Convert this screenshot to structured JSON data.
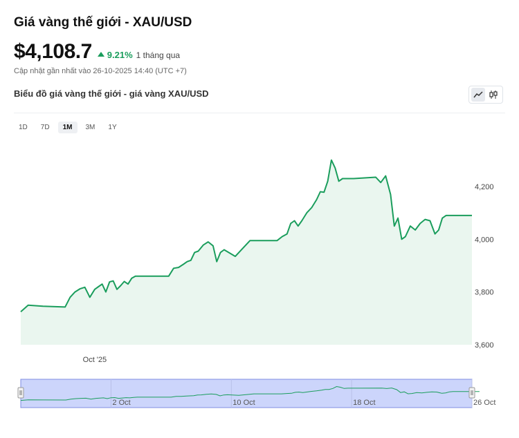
{
  "header": {
    "title": "Giá vàng thế giới - XAU/USD",
    "price": "$4,108.7",
    "change_pct": "9.21%",
    "change_period": "1 tháng qua",
    "updated": "Cập nhật gần nhất vào 26-10-2025 14:40 (UTC +7)",
    "chart_heading": "Biểu đồ giá vàng thế giới - giá vàng XAU/USD"
  },
  "colors": {
    "line": "#1a9d5c",
    "area": "#eaf6ef",
    "up": "#1a9d5c",
    "navigator_fill": "#ccd5fb",
    "navigator_border": "#7f8de0"
  },
  "view_toggle": {
    "icons": [
      "line-chart-icon",
      "candlestick-icon"
    ],
    "active": "line"
  },
  "ranges": {
    "items": [
      "1D",
      "7D",
      "1M",
      "3M",
      "1Y"
    ],
    "active": "1M"
  },
  "chart_data": {
    "type": "area",
    "ylim": [
      3600,
      4370
    ],
    "yticks": [
      "4,200",
      "4,000",
      "3,800",
      "3,600"
    ],
    "ytick_values": [
      4200,
      4000,
      3800,
      3600
    ],
    "xtick_labels": [
      "Oct '25"
    ],
    "xtick_dates": [
      "2025-10-01"
    ],
    "x_range": [
      "2025-09-26",
      "2025-10-26"
    ],
    "x": [
      "2025-09-26",
      "2025-09-26",
      "2025-09-27",
      "2025-09-29",
      "2025-09-29",
      "2025-09-29",
      "2025-09-30",
      "2025-09-30",
      "2025-09-30",
      "2025-10-01",
      "2025-10-01",
      "2025-10-01",
      "2025-10-01",
      "2025-10-02",
      "2025-10-02",
      "2025-10-02",
      "2025-10-02",
      "2025-10-03",
      "2025-10-03",
      "2025-10-03",
      "2025-10-03",
      "2025-10-04",
      "2025-10-06",
      "2025-10-06",
      "2025-10-06",
      "2025-10-07",
      "2025-10-07",
      "2025-10-07",
      "2025-10-07",
      "2025-10-08",
      "2025-10-08",
      "2025-10-08",
      "2025-10-09",
      "2025-10-09",
      "2025-10-09",
      "2025-10-09",
      "2025-10-10",
      "2025-10-11",
      "2025-10-13",
      "2025-10-13",
      "2025-10-13",
      "2025-10-14",
      "2025-10-14",
      "2025-10-14",
      "2025-10-14",
      "2025-10-15",
      "2025-10-15",
      "2025-10-15",
      "2025-10-16",
      "2025-10-16",
      "2025-10-16",
      "2025-10-16",
      "2025-10-17",
      "2025-10-17",
      "2025-10-17",
      "2025-10-17",
      "2025-10-18",
      "2025-10-20",
      "2025-10-20",
      "2025-10-20",
      "2025-10-21",
      "2025-10-21",
      "2025-10-21",
      "2025-10-21",
      "2025-10-22",
      "2025-10-22",
      "2025-10-22",
      "2025-10-23",
      "2025-10-23",
      "2025-10-23",
      "2025-10-24",
      "2025-10-24",
      "2025-10-24",
      "2025-10-24",
      "2025-10-25",
      "2025-10-26"
    ],
    "values": [
      3725,
      3750,
      3746,
      3743,
      3780,
      3800,
      3812,
      3818,
      3780,
      3810,
      3820,
      3830,
      3800,
      3838,
      3842,
      3810,
      3824,
      3840,
      3830,
      3852,
      3860,
      3860,
      3860,
      3890,
      3893,
      3905,
      3915,
      3920,
      3950,
      3955,
      3978,
      3990,
      3975,
      3915,
      3950,
      3960,
      3935,
      3995,
      3995,
      3995,
      4010,
      4020,
      4060,
      4070,
      4050,
      4070,
      4100,
      4120,
      4150,
      4180,
      4178,
      4220,
      4300,
      4270,
      4220,
      4230,
      4230,
      4235,
      4215,
      4240,
      4170,
      4050,
      4080,
      4000,
      4010,
      4050,
      4035,
      4060,
      4075,
      4070,
      4020,
      4035,
      4080,
      4090,
      4090,
      4090
    ],
    "navigator": {
      "labels": [
        "2 Oct",
        "10 Oct",
        "18 Oct",
        "26 Oct"
      ],
      "dates": [
        "2025-10-02",
        "2025-10-10",
        "2025-10-18",
        "2025-10-26"
      ]
    }
  }
}
